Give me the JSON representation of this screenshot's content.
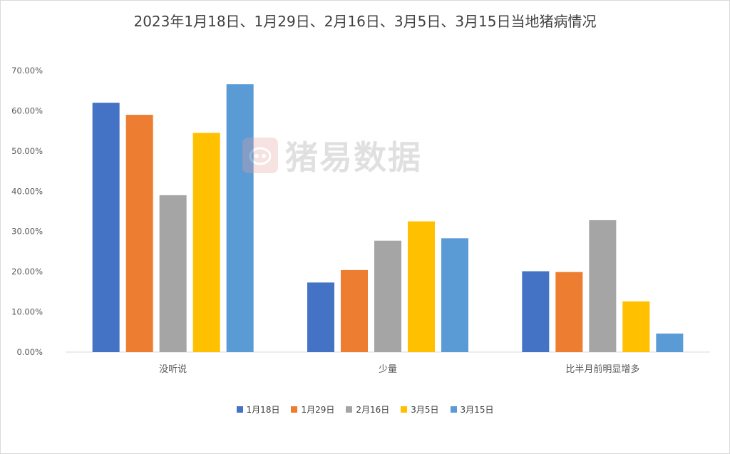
{
  "chart_data": {
    "type": "bar",
    "title": "2023年1月18日、1月29日、2月16日、3月5日、3月15日当地猪病情况",
    "categories": [
      "没听说",
      "少量",
      "比半月前明显增多"
    ],
    "series": [
      {
        "name": "1月18日",
        "color": "#4472C4",
        "values": [
          0.62,
          0.173,
          0.201
        ]
      },
      {
        "name": "1月29日",
        "color": "#ED7D31",
        "values": [
          0.59,
          0.204,
          0.199
        ]
      },
      {
        "name": "2月16日",
        "color": "#A5A5A5",
        "values": [
          0.39,
          0.277,
          0.328
        ]
      },
      {
        "name": "3月5日",
        "color": "#FFC000",
        "values": [
          0.545,
          0.325,
          0.126
        ]
      },
      {
        "name": "3月15日",
        "color": "#5B9BD5",
        "values": [
          0.666,
          0.283,
          0.046
        ]
      }
    ],
    "ylim": [
      0,
      0.7
    ],
    "y_ticks": [
      "0.00%",
      "10.00%",
      "20.00%",
      "30.00%",
      "40.00%",
      "50.00%",
      "60.00%",
      "70.00%"
    ],
    "grid": false,
    "legend_position": "bottom",
    "xlabel": "",
    "ylabel": ""
  },
  "watermark": {
    "text": "猪易数据",
    "logo_icon": "pig-logo-icon"
  }
}
